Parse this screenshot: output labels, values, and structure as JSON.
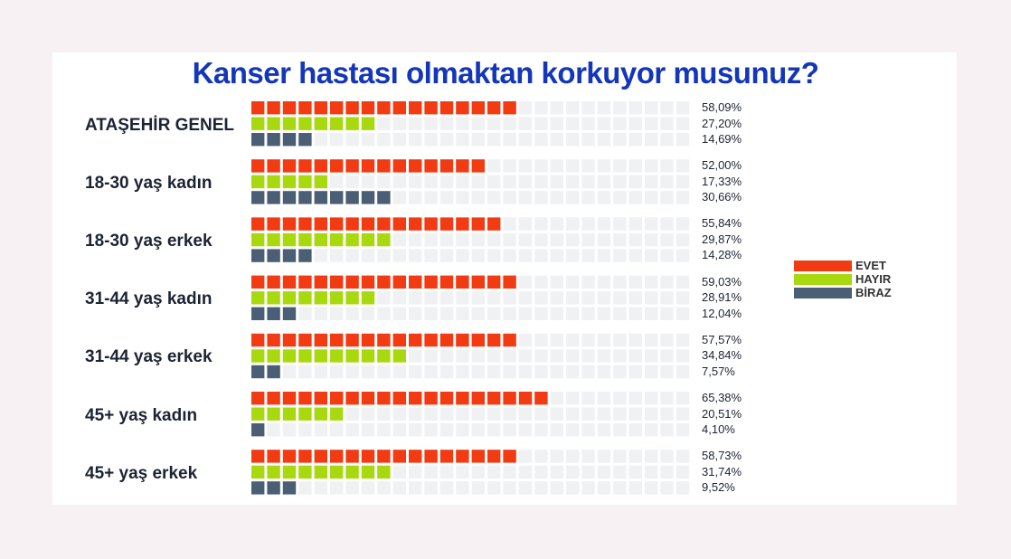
{
  "chart_data": {
    "type": "bar",
    "title": "Kanser hastası olmaktan korkuyor musunuz?",
    "categories": [
      "ATAŞEHİR GENEL",
      "18-30 yaş kadın",
      "18-30 yaş erkek",
      "31-44 yaş kadın",
      "31-44 yaş erkek",
      "45+ yaş kadın",
      "45+ yaş erkek"
    ],
    "series": [
      {
        "name": "EVET",
        "color": "#f23a13",
        "values": [
          58.09,
          52.0,
          55.84,
          59.03,
          57.57,
          65.38,
          58.73
        ],
        "labels": [
          "58,09%",
          "52,00%",
          "55,84%",
          "59,03%",
          "57,57%",
          "65,38%",
          "58,73%"
        ]
      },
      {
        "name": "HAYIR",
        "color": "#a8d90e",
        "values": [
          27.2,
          17.33,
          29.87,
          28.91,
          34.84,
          20.51,
          31.74
        ],
        "labels": [
          "27,20%",
          "17,33%",
          "29,87%",
          "28,91%",
          "34,84%",
          "20,51%",
          "31,74%"
        ]
      },
      {
        "name": "BİRAZ",
        "color": "#4a5e75",
        "values": [
          14.69,
          30.66,
          14.28,
          12.04,
          7.57,
          4.1,
          9.52
        ],
        "labels": [
          "14,69%",
          "30,66%",
          "14,28%",
          "12,04%",
          "7,57%",
          "4,10%",
          "9,52%"
        ]
      }
    ],
    "units_per_square": 3.45,
    "squares_per_row": 28,
    "empty_square_color": "#eff1f3",
    "legend_position": "right"
  }
}
